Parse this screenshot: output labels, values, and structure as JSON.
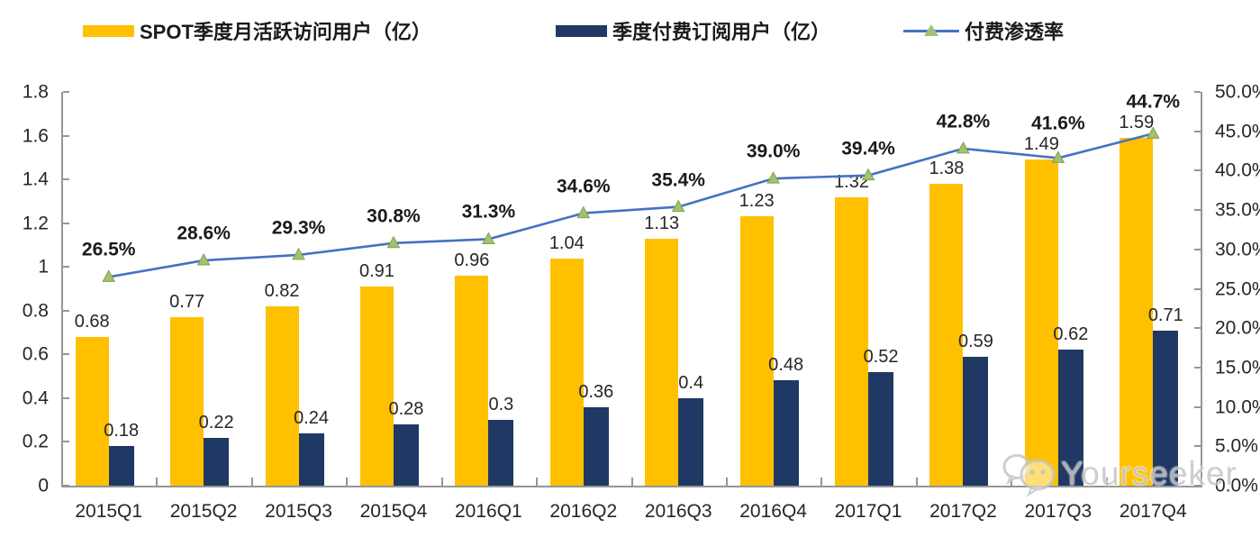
{
  "legend": [
    {
      "label": "SPOT季度月活跃访问用户（亿）",
      "type": "bar",
      "color": "#FFC000"
    },
    {
      "label": "季度付费订阅用户（亿）",
      "type": "bar",
      "color": "#1F3864"
    },
    {
      "label": "付费渗透率",
      "type": "line",
      "color": "#4472C4",
      "marker_color": "#A3C16E"
    }
  ],
  "watermark": {
    "text": "Yourseeker"
  },
  "chart_data": {
    "type": "bar+line",
    "categories": [
      "2015Q1",
      "2015Q2",
      "2015Q3",
      "2015Q4",
      "2016Q1",
      "2016Q2",
      "2016Q3",
      "2016Q4",
      "2017Q1",
      "2017Q2",
      "2017Q3",
      "2017Q4"
    ],
    "series": [
      {
        "name": "SPOT季度月活跃访问用户（亿）",
        "type": "bar",
        "axis": "left",
        "color": "#FFC000",
        "values": [
          0.68,
          0.77,
          0.82,
          0.91,
          0.96,
          1.04,
          1.13,
          1.23,
          1.32,
          1.38,
          1.49,
          1.59
        ],
        "labels": [
          "0.68",
          "0.77",
          "0.82",
          "0.91",
          "0.96",
          "1.04",
          "1.13",
          "1.23",
          "1.32",
          "1.38",
          "1.49",
          "1.59"
        ]
      },
      {
        "name": "季度付费订阅用户（亿）",
        "type": "bar",
        "axis": "left",
        "color": "#1F3864",
        "values": [
          0.18,
          0.22,
          0.24,
          0.28,
          0.3,
          0.36,
          0.4,
          0.48,
          0.52,
          0.59,
          0.62,
          0.71
        ],
        "labels": [
          "0.18",
          "0.22",
          "0.24",
          "0.28",
          "0.3",
          "0.36",
          "0.4",
          "0.48",
          "0.52",
          "0.59",
          "0.62",
          "0.71"
        ]
      },
      {
        "name": "付费渗透率",
        "type": "line",
        "axis": "right",
        "color": "#4472C4",
        "marker": "triangle",
        "marker_color": "#A3C16E",
        "values": [
          26.5,
          28.6,
          29.3,
          30.8,
          31.3,
          34.6,
          35.4,
          39.0,
          39.4,
          42.8,
          41.6,
          44.7
        ],
        "labels": [
          "26.5%",
          "28.6%",
          "29.3%",
          "30.8%",
          "31.3%",
          "34.6%",
          "35.4%",
          "39.0%",
          "39.4%",
          "42.8%",
          "41.6%",
          "44.7%"
        ]
      }
    ],
    "left_axis": {
      "min": 0,
      "max": 1.8,
      "step": 0.2,
      "ticks": [
        "1.8",
        "1.6",
        "1.4",
        "1.2",
        "1",
        "0.8",
        "0.6",
        "0.4",
        "0.2",
        "0"
      ]
    },
    "right_axis": {
      "min": 0,
      "max": 50,
      "step": 5,
      "ticks": [
        "50.0%",
        "45.0%",
        "40.0%",
        "35.0%",
        "30.0%",
        "25.0%",
        "20.0%",
        "15.0%",
        "10.0%",
        "5.0%",
        "0.0%"
      ]
    },
    "grid": false,
    "legend_position": "top",
    "title": ""
  }
}
